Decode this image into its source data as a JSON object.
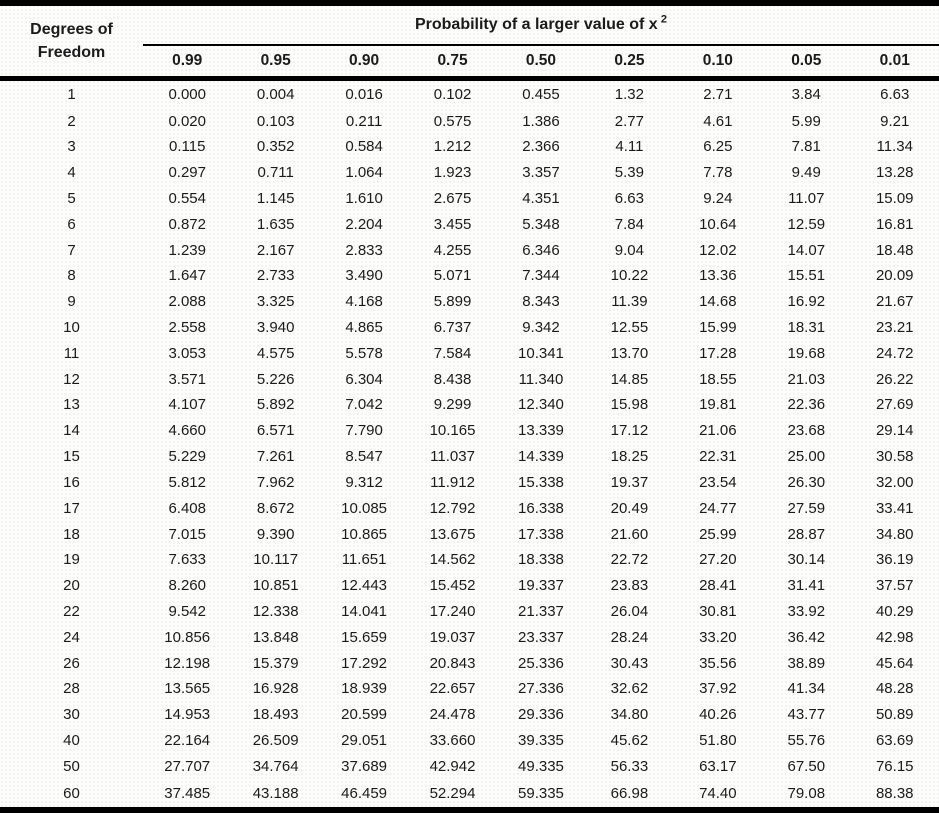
{
  "page": {
    "background_color": "#fdfdfc",
    "border_color": "#000000",
    "text_color": "#1b1b1b"
  },
  "table": {
    "corner_header_line1": "Degrees of",
    "corner_header_line2": "Freedom",
    "span_header_text": "Probability of a larger value of x",
    "span_header_superscript": "2"
  },
  "chart_data": {
    "type": "table",
    "title": "Probability of a larger value of x 2 (chi-square distribution critical values)",
    "row_header": "Degrees of Freedom",
    "columns": [
      "0.99",
      "0.95",
      "0.90",
      "0.75",
      "0.50",
      "0.25",
      "0.10",
      "0.05",
      "0.01"
    ],
    "rows": [
      {
        "df": "1",
        "values": [
          "0.000",
          "0.004",
          "0.016",
          "0.102",
          "0.455",
          "1.32",
          "2.71",
          "3.84",
          "6.63"
        ]
      },
      {
        "df": "2",
        "values": [
          "0.020",
          "0.103",
          "0.211",
          "0.575",
          "1.386",
          "2.77",
          "4.61",
          "5.99",
          "9.21"
        ]
      },
      {
        "df": "3",
        "values": [
          "0.115",
          "0.352",
          "0.584",
          "1.212",
          "2.366",
          "4.11",
          "6.25",
          "7.81",
          "11.34"
        ]
      },
      {
        "df": "4",
        "values": [
          "0.297",
          "0.711",
          "1.064",
          "1.923",
          "3.357",
          "5.39",
          "7.78",
          "9.49",
          "13.28"
        ]
      },
      {
        "df": "5",
        "values": [
          "0.554",
          "1.145",
          "1.610",
          "2.675",
          "4.351",
          "6.63",
          "9.24",
          "11.07",
          "15.09"
        ]
      },
      {
        "df": "6",
        "values": [
          "0.872",
          "1.635",
          "2.204",
          "3.455",
          "5.348",
          "7.84",
          "10.64",
          "12.59",
          "16.81"
        ]
      },
      {
        "df": "7",
        "values": [
          "1.239",
          "2.167",
          "2.833",
          "4.255",
          "6.346",
          "9.04",
          "12.02",
          "14.07",
          "18.48"
        ]
      },
      {
        "df": "8",
        "values": [
          "1.647",
          "2.733",
          "3.490",
          "5.071",
          "7.344",
          "10.22",
          "13.36",
          "15.51",
          "20.09"
        ]
      },
      {
        "df": "9",
        "values": [
          "2.088",
          "3.325",
          "4.168",
          "5.899",
          "8.343",
          "11.39",
          "14.68",
          "16.92",
          "21.67"
        ]
      },
      {
        "df": "10",
        "values": [
          "2.558",
          "3.940",
          "4.865",
          "6.737",
          "9.342",
          "12.55",
          "15.99",
          "18.31",
          "23.21"
        ]
      },
      {
        "df": "11",
        "values": [
          "3.053",
          "4.575",
          "5.578",
          "7.584",
          "10.341",
          "13.70",
          "17.28",
          "19.68",
          "24.72"
        ]
      },
      {
        "df": "12",
        "values": [
          "3.571",
          "5.226",
          "6.304",
          "8.438",
          "11.340",
          "14.85",
          "18.55",
          "21.03",
          "26.22"
        ]
      },
      {
        "df": "13",
        "values": [
          "4.107",
          "5.892",
          "7.042",
          "9.299",
          "12.340",
          "15.98",
          "19.81",
          "22.36",
          "27.69"
        ]
      },
      {
        "df": "14",
        "values": [
          "4.660",
          "6.571",
          "7.790",
          "10.165",
          "13.339",
          "17.12",
          "21.06",
          "23.68",
          "29.14"
        ]
      },
      {
        "df": "15",
        "values": [
          "5.229",
          "7.261",
          "8.547",
          "11.037",
          "14.339",
          "18.25",
          "22.31",
          "25.00",
          "30.58"
        ]
      },
      {
        "df": "16",
        "values": [
          "5.812",
          "7.962",
          "9.312",
          "11.912",
          "15.338",
          "19.37",
          "23.54",
          "26.30",
          "32.00"
        ]
      },
      {
        "df": "17",
        "values": [
          "6.408",
          "8.672",
          "10.085",
          "12.792",
          "16.338",
          "20.49",
          "24.77",
          "27.59",
          "33.41"
        ]
      },
      {
        "df": "18",
        "values": [
          "7.015",
          "9.390",
          "10.865",
          "13.675",
          "17.338",
          "21.60",
          "25.99",
          "28.87",
          "34.80"
        ]
      },
      {
        "df": "19",
        "values": [
          "7.633",
          "10.117",
          "11.651",
          "14.562",
          "18.338",
          "22.72",
          "27.20",
          "30.14",
          "36.19"
        ]
      },
      {
        "df": "20",
        "values": [
          "8.260",
          "10.851",
          "12.443",
          "15.452",
          "19.337",
          "23.83",
          "28.41",
          "31.41",
          "37.57"
        ]
      },
      {
        "df": "22",
        "values": [
          "9.542",
          "12.338",
          "14.041",
          "17.240",
          "21.337",
          "26.04",
          "30.81",
          "33.92",
          "40.29"
        ]
      },
      {
        "df": "24",
        "values": [
          "10.856",
          "13.848",
          "15.659",
          "19.037",
          "23.337",
          "28.24",
          "33.20",
          "36.42",
          "42.98"
        ]
      },
      {
        "df": "26",
        "values": [
          "12.198",
          "15.379",
          "17.292",
          "20.843",
          "25.336",
          "30.43",
          "35.56",
          "38.89",
          "45.64"
        ]
      },
      {
        "df": "28",
        "values": [
          "13.565",
          "16.928",
          "18.939",
          "22.657",
          "27.336",
          "32.62",
          "37.92",
          "41.34",
          "48.28"
        ]
      },
      {
        "df": "30",
        "values": [
          "14.953",
          "18.493",
          "20.599",
          "24.478",
          "29.336",
          "34.80",
          "40.26",
          "43.77",
          "50.89"
        ]
      },
      {
        "df": "40",
        "values": [
          "22.164",
          "26.509",
          "29.051",
          "33.660",
          "39.335",
          "45.62",
          "51.80",
          "55.76",
          "63.69"
        ]
      },
      {
        "df": "50",
        "values": [
          "27.707",
          "34.764",
          "37.689",
          "42.942",
          "49.335",
          "56.33",
          "63.17",
          "67.50",
          "76.15"
        ]
      },
      {
        "df": "60",
        "values": [
          "37.485",
          "43.188",
          "46.459",
          "52.294",
          "59.335",
          "66.98",
          "74.40",
          "79.08",
          "88.38"
        ]
      }
    ]
  }
}
